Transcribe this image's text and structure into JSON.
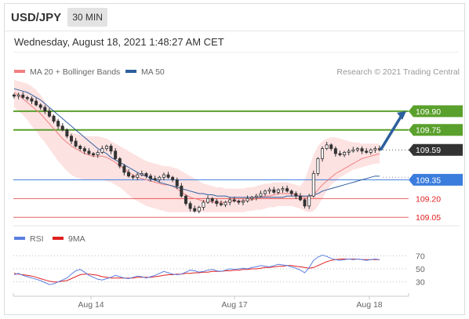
{
  "header": {
    "symbol": "USD/JPY",
    "timeframe": "30 MIN",
    "datetime": "Wednesday, August 18, 2021 1:48:27 AM CET"
  },
  "legend": {
    "ma20_label": "MA 20 + Bollinger Bands",
    "ma50_label": "MA 50",
    "credit": "Research © 2021 Trading Central",
    "rsi_label": "RSI",
    "rsi_ma_label": "9MA"
  },
  "colors": {
    "ma20": "#f08080",
    "ma50": "#2e5f9e",
    "band_fill": "#fde2e2",
    "resistance": "#5aa02c",
    "pivot": "#3b7ddd",
    "support": "#e02020",
    "last_price": "#333333",
    "rsi": "#5b7fe0",
    "rsi_ma": "#e02020",
    "candle": "#333333"
  },
  "chart_data": [
    {
      "type": "candlestick",
      "instrument": "USD/JPY",
      "timeframe": "30 MIN",
      "xlabels": [
        "Aug 14",
        "Aug 17",
        "Aug 18"
      ],
      "ylim": [
        109.02,
        110.15
      ],
      "levels": [
        {
          "label": "109.90",
          "value": 109.9,
          "kind": "resistance"
        },
        {
          "label": "109.75",
          "value": 109.75,
          "kind": "resistance"
        },
        {
          "label": "109.59",
          "value": 109.59,
          "kind": "last"
        },
        {
          "label": "109.35",
          "value": 109.35,
          "kind": "pivot"
        },
        {
          "label": "109.20",
          "value": 109.2,
          "kind": "support"
        },
        {
          "label": "109.05",
          "value": 109.05,
          "kind": "support"
        }
      ],
      "close": [
        110.02,
        110.03,
        110.01,
        110.0,
        109.98,
        109.95,
        109.93,
        109.9,
        109.86,
        109.82,
        109.78,
        109.75,
        109.7,
        109.66,
        109.62,
        109.6,
        109.58,
        109.56,
        109.55,
        109.57,
        109.6,
        109.62,
        109.58,
        109.52,
        109.46,
        109.41,
        109.38,
        109.37,
        109.39,
        109.4,
        109.38,
        109.36,
        109.35,
        109.37,
        109.39,
        109.37,
        109.35,
        109.3,
        109.22,
        109.16,
        109.12,
        109.1,
        109.13,
        109.17,
        109.2,
        109.18,
        109.16,
        109.15,
        109.17,
        109.19,
        109.18,
        109.17,
        109.18,
        109.2,
        109.21,
        109.22,
        109.24,
        109.26,
        109.27,
        109.25,
        109.27,
        109.28,
        109.26,
        109.24,
        109.22,
        109.19,
        109.14,
        109.22,
        109.4,
        109.52,
        109.6,
        109.63,
        109.6,
        109.56,
        109.55,
        109.57,
        109.58,
        109.59,
        109.6,
        109.58,
        109.57,
        109.59,
        109.6,
        109.59
      ],
      "ma20": [
        110.05,
        110.03,
        110.0,
        109.97,
        109.94,
        109.91,
        109.88,
        109.84,
        109.8,
        109.76,
        109.72,
        109.68,
        109.65,
        109.62,
        109.6,
        109.58,
        109.56,
        109.55,
        109.54,
        109.54,
        109.54,
        109.53,
        109.51,
        109.49,
        109.46,
        109.44,
        109.41,
        109.39,
        109.37,
        109.36,
        109.35,
        109.34,
        109.33,
        109.32,
        109.31,
        109.31,
        109.3,
        109.28,
        109.25,
        109.23,
        109.21,
        109.2,
        109.19,
        109.18,
        109.18,
        109.17,
        109.17,
        109.17,
        109.17,
        109.18,
        109.18,
        109.18,
        109.18,
        109.19,
        109.19,
        109.2,
        109.21,
        109.22,
        109.22,
        109.23,
        109.24,
        109.24,
        109.24,
        109.24,
        109.23,
        109.22,
        109.21,
        109.21,
        109.23,
        109.27,
        109.31,
        109.34,
        109.37,
        109.4,
        109.42,
        109.44,
        109.46,
        109.48,
        109.5,
        109.52,
        109.53,
        109.54,
        109.55,
        109.56
      ],
      "ma50": [
        110.08,
        110.07,
        110.06,
        110.05,
        110.03,
        110.01,
        109.99,
        109.96,
        109.93,
        109.9,
        109.87,
        109.84,
        109.81,
        109.78,
        109.75,
        109.72,
        109.69,
        109.66,
        109.63,
        109.6,
        109.58,
        109.56,
        109.53,
        109.51,
        109.49,
        109.47,
        109.45,
        109.43,
        109.41,
        109.39,
        109.38,
        109.36,
        109.35,
        109.33,
        109.32,
        109.31,
        109.3,
        109.29,
        109.28,
        109.27,
        109.26,
        109.25,
        109.24,
        109.24,
        109.23,
        109.23,
        109.22,
        109.22,
        109.22,
        109.21,
        109.21,
        109.21,
        109.21,
        109.21,
        109.21,
        109.21,
        109.21,
        109.21,
        109.21,
        109.21,
        109.21,
        109.21,
        109.22,
        109.22,
        109.22,
        109.22,
        109.22,
        109.22,
        109.23,
        109.24,
        109.26,
        109.27,
        109.28,
        109.29,
        109.3,
        109.31,
        109.32,
        109.33,
        109.34,
        109.35,
        109.36,
        109.37,
        109.38,
        109.38
      ],
      "band_upper": [
        110.15,
        110.14,
        110.13,
        110.12,
        110.1,
        110.07,
        110.03,
        109.98,
        109.92,
        109.87,
        109.82,
        109.78,
        109.75,
        109.73,
        109.72,
        109.71,
        109.7,
        109.7,
        109.7,
        109.7,
        109.69,
        109.68,
        109.66,
        109.64,
        109.62,
        109.6,
        109.58,
        109.56,
        109.54,
        109.52,
        109.5,
        109.49,
        109.48,
        109.47,
        109.46,
        109.46,
        109.45,
        109.44,
        109.42,
        109.4,
        109.38,
        109.36,
        109.34,
        109.32,
        109.31,
        109.3,
        109.29,
        109.29,
        109.28,
        109.28,
        109.28,
        109.28,
        109.28,
        109.29,
        109.29,
        109.3,
        109.31,
        109.32,
        109.32,
        109.33,
        109.33,
        109.33,
        109.33,
        109.32,
        109.31,
        109.3,
        109.35,
        109.45,
        109.55,
        109.62,
        109.66,
        109.68,
        109.69,
        109.69,
        109.68,
        109.67,
        109.66,
        109.65,
        109.65,
        109.64,
        109.64,
        109.64,
        109.64,
        109.64
      ],
      "band_lower": [
        109.93,
        109.9,
        109.87,
        109.83,
        109.78,
        109.74,
        109.69,
        109.65,
        109.6,
        109.55,
        109.5,
        109.46,
        109.42,
        109.39,
        109.37,
        109.36,
        109.35,
        109.35,
        109.35,
        109.35,
        109.35,
        109.34,
        109.33,
        109.31,
        109.29,
        109.26,
        109.23,
        109.2,
        109.18,
        109.16,
        109.14,
        109.13,
        109.12,
        109.11,
        109.1,
        109.09,
        109.09,
        109.09,
        109.09,
        109.09,
        109.09,
        109.09,
        109.09,
        109.09,
        109.09,
        109.09,
        109.09,
        109.09,
        109.09,
        109.09,
        109.09,
        109.09,
        109.09,
        109.1,
        109.1,
        109.11,
        109.11,
        109.12,
        109.13,
        109.13,
        109.14,
        109.14,
        109.14,
        109.14,
        109.13,
        109.12,
        109.1,
        109.09,
        109.1,
        109.14,
        109.2,
        109.26,
        109.31,
        109.34,
        109.37,
        109.39,
        109.41,
        109.43,
        109.44,
        109.45,
        109.46,
        109.47,
        109.48,
        109.48
      ]
    },
    {
      "type": "line",
      "name": "RSI",
      "ylim": [
        20,
        80
      ],
      "yticks": [
        "70",
        "50",
        "30"
      ],
      "series": [
        {
          "name": "RSI",
          "values": [
            41,
            43,
            40,
            38,
            36,
            34,
            32,
            29,
            26,
            27,
            30,
            33,
            36,
            42,
            47,
            49,
            45,
            40,
            37,
            34,
            33,
            35,
            37,
            40,
            38,
            36,
            35,
            37,
            39,
            38,
            36,
            38,
            40,
            43,
            46,
            44,
            42,
            41,
            42,
            45,
            48,
            47,
            45,
            46,
            48,
            49,
            47,
            46,
            48,
            50,
            49,
            50,
            51,
            50,
            52,
            53,
            55,
            54,
            53,
            55,
            57,
            56,
            55,
            53,
            51,
            48,
            44,
            52,
            63,
            68,
            71,
            69,
            66,
            64,
            63,
            64,
            65,
            64,
            65,
            64,
            63,
            64,
            65,
            64
          ]
        },
        {
          "name": "9MA",
          "values": [
            43,
            42,
            41,
            40,
            39,
            37,
            35,
            33,
            31,
            30,
            30,
            31,
            32,
            35,
            38,
            41,
            42,
            42,
            41,
            40,
            38,
            37,
            36,
            36,
            36,
            36,
            36,
            36,
            37,
            37,
            37,
            37,
            38,
            39,
            40,
            41,
            41,
            42,
            42,
            43,
            43,
            44,
            44,
            45,
            45,
            46,
            46,
            46,
            47,
            47,
            48,
            48,
            49,
            49,
            50,
            50,
            51,
            52,
            52,
            53,
            54,
            54,
            55,
            55,
            54,
            53,
            52,
            51,
            52,
            55,
            58,
            61,
            63,
            64,
            65,
            65,
            65,
            65,
            65,
            64,
            64,
            64,
            64,
            64
          ]
        }
      ]
    }
  ]
}
